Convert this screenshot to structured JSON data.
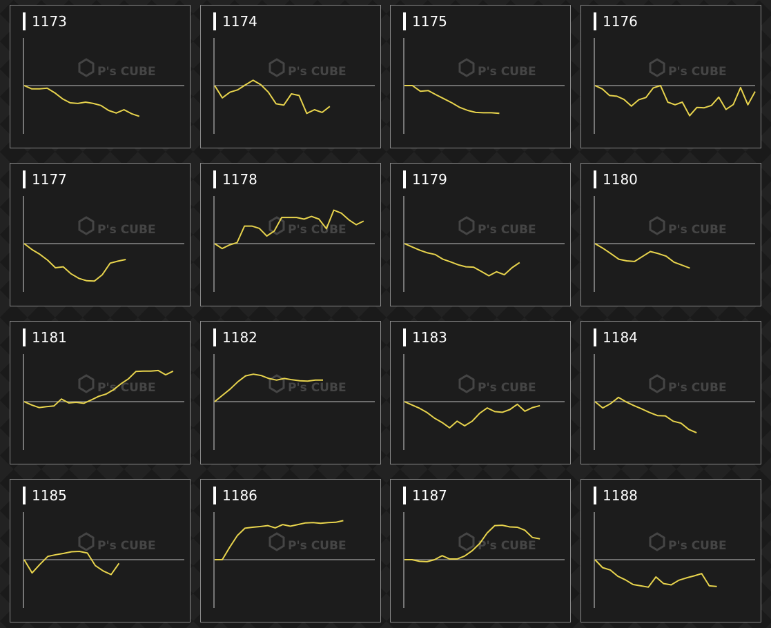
{
  "colors": {
    "line": "#e8d44d",
    "baseline": "#8a8a8a",
    "axis": "#cfcfcf",
    "panel_border": "#8a8a8a"
  },
  "watermark": {
    "logo_text": "P's CUBE",
    "icon": "cube-icon"
  },
  "chart_data": [
    {
      "type": "line",
      "title": "1173",
      "y": [
        0,
        -1,
        -1,
        -0.8,
        -2.2,
        -4,
        -5.2,
        -5.4,
        -5,
        -5.4,
        -6,
        -7.5,
        -8.3,
        -7.3,
        -8.5,
        -9.3
      ]
    },
    {
      "type": "line",
      "title": "1174",
      "y": [
        0,
        -3.7,
        -2,
        -1.3,
        0.2,
        1.6,
        0.3,
        -2,
        -5.5,
        -5.9,
        -2.5,
        -3,
        -8.4,
        -7.3,
        -8.1,
        -6.3
      ]
    },
    {
      "type": "line",
      "title": "1175",
      "y": [
        0,
        0,
        -1.7,
        -1.5,
        -2.8,
        -4,
        -5.2,
        -6.6,
        -7.5,
        -8.1,
        -8.2,
        -8.2,
        -8.4
      ]
    },
    {
      "type": "line",
      "title": "1176",
      "y": [
        0,
        -1,
        -3,
        -3.2,
        -4.2,
        -6.2,
        -4.3,
        -3.6,
        -0.7,
        0,
        -5,
        -5.8,
        -5,
        -9.1,
        -6.6,
        -6.7,
        -6,
        -3.5,
        -7.2,
        -5.7,
        -0.6,
        -5.8,
        -1.8
      ]
    },
    {
      "type": "line",
      "title": "1177",
      "y": [
        0,
        -1.8,
        -3.2,
        -5,
        -7.3,
        -7,
        -9.1,
        -10.5,
        -11.2,
        -11.3,
        -9.4,
        -5.9,
        -5.3,
        -4.8
      ]
    },
    {
      "type": "line",
      "title": "1178",
      "y": [
        0,
        -1.5,
        -0.4,
        0.3,
        5.3,
        5.3,
        4.6,
        2.3,
        3.8,
        7.9,
        7.9,
        7.9,
        7.4,
        8.2,
        7.4,
        4.5,
        10.1,
        9.2,
        7.2,
        5.7,
        6.8
      ]
    },
    {
      "type": "line",
      "title": "1179",
      "y": [
        0,
        -1,
        -2,
        -2.8,
        -3.3,
        -4.7,
        -5.5,
        -6.4,
        -7,
        -7.1,
        -8.4,
        -9.7,
        -8.5,
        -9.4,
        -7.3,
        -5.7
      ]
    },
    {
      "type": "line",
      "title": "1180",
      "y": [
        0,
        -1.4,
        -3,
        -4.7,
        -5.2,
        -5.4,
        -3.9,
        -2.4,
        -3,
        -3.8,
        -5.6,
        -6.5,
        -7.4
      ]
    },
    {
      "type": "line",
      "title": "1181",
      "y": [
        0,
        -1,
        -1.8,
        -1.5,
        -1.3,
        0.8,
        -0.4,
        -0.2,
        -0.5,
        0.5,
        1.6,
        2.3,
        3.6,
        5.4,
        6.9,
        9.1,
        9.2,
        9.2,
        9.4,
        8.1,
        9.2
      ]
    },
    {
      "type": "line",
      "title": "1182",
      "y": [
        0,
        1.9,
        3.8,
        6,
        7.8,
        8.3,
        7.9,
        7,
        6.5,
        7,
        6.6,
        6.3,
        6.2,
        6.5,
        6.5
      ]
    },
    {
      "type": "line",
      "title": "1183",
      "y": [
        0,
        -1,
        -2,
        -3.3,
        -5,
        -6.3,
        -7.9,
        -5.9,
        -7.3,
        -5.9,
        -3.5,
        -1.9,
        -3,
        -3.2,
        -2.4,
        -0.8,
        -2.9,
        -1.8,
        -1.2
      ]
    },
    {
      "type": "line",
      "title": "1184",
      "y": [
        0,
        -1.9,
        -0.6,
        1.3,
        -0.1,
        -1.2,
        -2.2,
        -3.3,
        -4.2,
        -4.3,
        -5.9,
        -6.5,
        -8.4,
        -9.4
      ]
    },
    {
      "type": "line",
      "title": "1185",
      "y": [
        0,
        -4,
        -1.4,
        1,
        1.5,
        1.9,
        2.4,
        2.5,
        2,
        -1.8,
        -3.4,
        -4.5,
        -1.1
      ]
    },
    {
      "type": "line",
      "title": "1186",
      "y": [
        0,
        0,
        3.8,
        7.3,
        9.5,
        9.8,
        10,
        10.3,
        9.6,
        10.6,
        10.1,
        10.6,
        11.1,
        11.2,
        11,
        11.2,
        11.3,
        11.8
      ]
    },
    {
      "type": "line",
      "title": "1187",
      "y": [
        0,
        0,
        -0.5,
        -0.6,
        0,
        1.2,
        0.2,
        0.2,
        1.1,
        2.7,
        4.9,
        8.1,
        10.3,
        10.4,
        9.9,
        9.8,
        8.9,
        6.7,
        6.3
      ]
    },
    {
      "type": "line",
      "title": "1188",
      "y": [
        0,
        -2.4,
        -3.1,
        -5,
        -6.1,
        -7.5,
        -7.9,
        -8.3,
        -5.2,
        -7.2,
        -7.6,
        -6.2,
        -5.5,
        -4.9,
        -4.2,
        -7.9,
        -8.1
      ]
    }
  ]
}
